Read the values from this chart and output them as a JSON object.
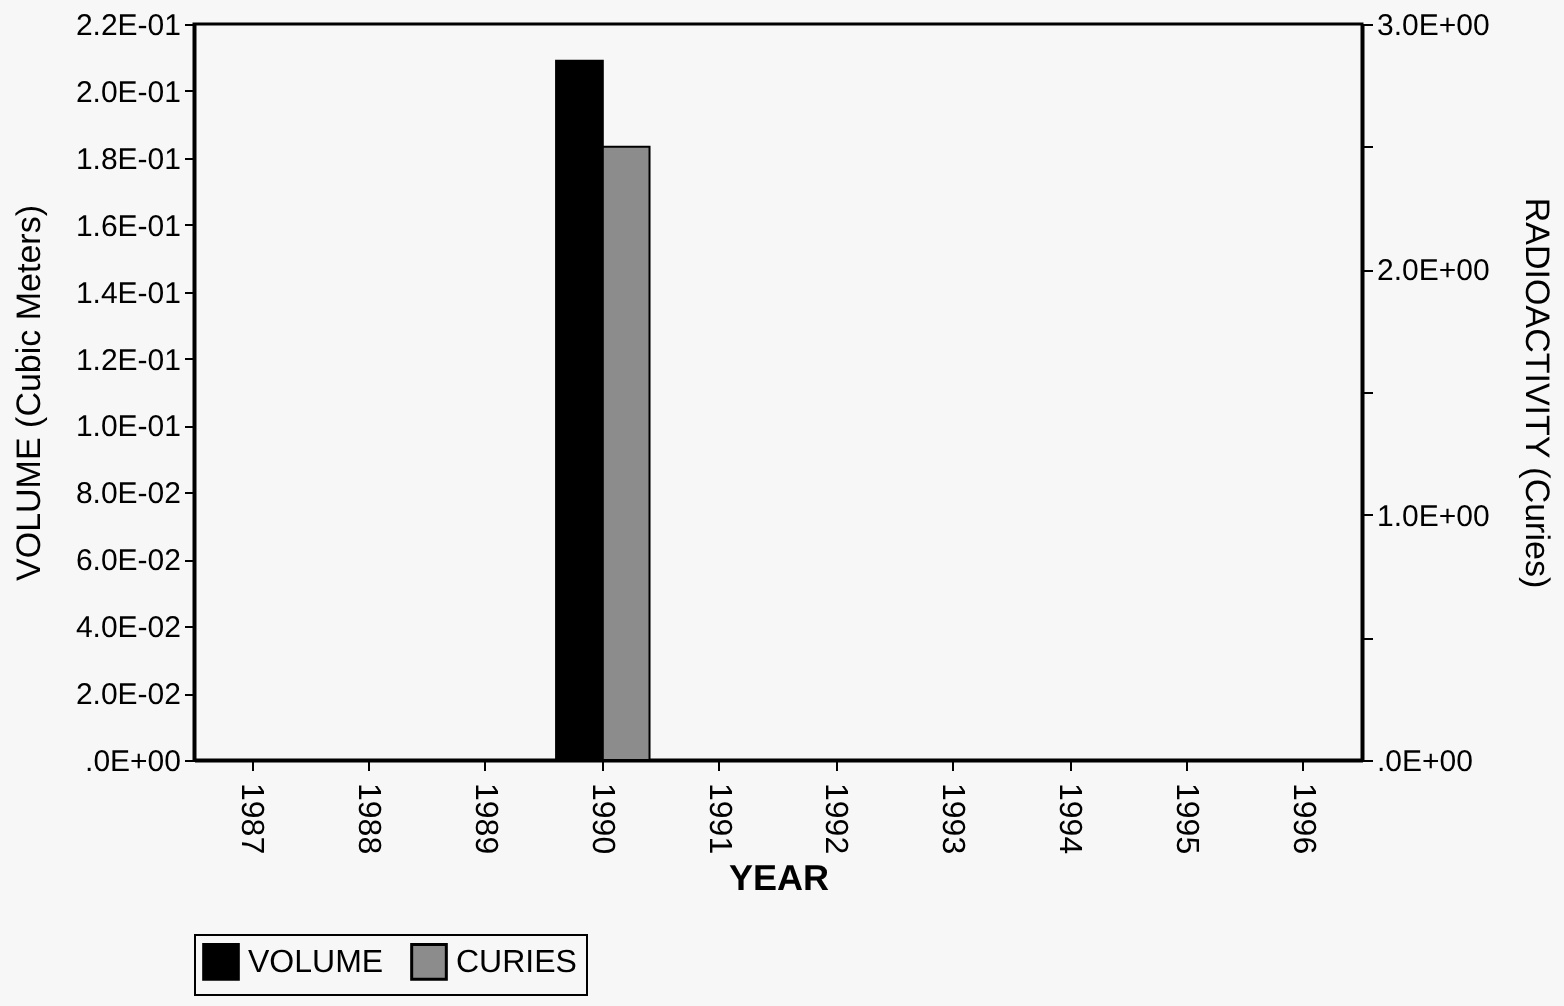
{
  "chart_data": {
    "type": "bar",
    "xlabel": "YEAR",
    "ylabel": "VOLUME (Cubic Meters)",
    "y2label": "RADIOACTIVITY (Curies)",
    "categories": [
      "1987",
      "1988",
      "1989",
      "1990",
      "1991",
      "1992",
      "1993",
      "1994",
      "1995",
      "1996"
    ],
    "series": [
      {
        "name": "VOLUME",
        "color": "#000000",
        "values": [
          null,
          null,
          null,
          0.209,
          null,
          null,
          null,
          null,
          null,
          null
        ]
      },
      {
        "name": "CURIES",
        "color": "#8c8c8c",
        "axis": "y2",
        "values": [
          null,
          null,
          null,
          2.5,
          null,
          null,
          null,
          null,
          null,
          null
        ]
      }
    ],
    "ylim": [
      0,
      0.22
    ],
    "yticks": [
      {
        "value": 0,
        "label": ".0E+00"
      },
      {
        "value": 0.02,
        "label": "2.0E-02"
      },
      {
        "value": 0.04,
        "label": "4.0E-02"
      },
      {
        "value": 0.06,
        "label": "6.0E-02"
      },
      {
        "value": 0.08,
        "label": "8.0E-02"
      },
      {
        "value": 0.1,
        "label": "1.0E-01"
      },
      {
        "value": 0.12,
        "label": "1.2E-01"
      },
      {
        "value": 0.14,
        "label": "1.4E-01"
      },
      {
        "value": 0.16,
        "label": "1.6E-01"
      },
      {
        "value": 0.18,
        "label": "1.8E-01"
      },
      {
        "value": 0.2,
        "label": "2.0E-01"
      },
      {
        "value": 0.22,
        "label": "2.2E-01"
      }
    ],
    "y2lim": [
      0,
      3
    ],
    "y2ticks": [
      {
        "value": 0,
        "label": ".0E+00"
      },
      {
        "value": 0.5,
        "label": null
      },
      {
        "value": 1,
        "label": "1.0E+00"
      },
      {
        "value": 1.5,
        "label": null
      },
      {
        "value": 2,
        "label": "2.0E+00"
      },
      {
        "value": 2.5,
        "label": null
      },
      {
        "value": 3,
        "label": "3.0E+00"
      }
    ],
    "legend": "bottom",
    "grid": false
  }
}
